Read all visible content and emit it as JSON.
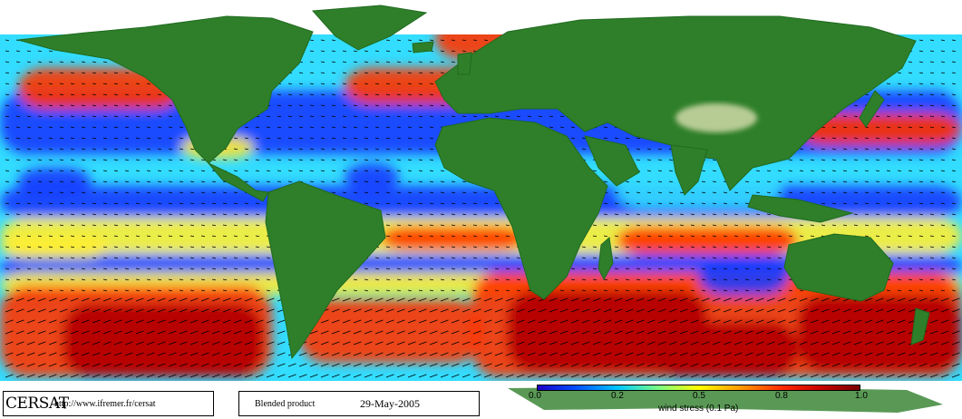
{
  "header": {
    "logo_text": "CERSAT",
    "url": "http://www.ifremer.fr/cersat"
  },
  "product": {
    "name": "Blended product",
    "date": "29-May-2005"
  },
  "legend": {
    "label": "wind stress (0.1 Pa)",
    "ticks": [
      "0.0",
      "0.2",
      "0.5",
      "0.8",
      "1.0"
    ],
    "colors": [
      "#1e00c8",
      "#0050ff",
      "#00c8ff",
      "#7fff7f",
      "#ffff00",
      "#ff9a00",
      "#ff2a00",
      "#c80000",
      "#7a0000"
    ]
  },
  "palette": {
    "land": "#2f7f2a",
    "land_dark": "#1f6a1f",
    "plateau": "#cfd9a8",
    "ice": "#ffffff",
    "calm": "#1a3cff",
    "moderate": "#33ddff",
    "mid": "#ffee33",
    "strong": "#ff3300",
    "very_strong": "#b30000",
    "arrow": "#000000"
  },
  "icons": [
    "wind-vector-icon"
  ]
}
